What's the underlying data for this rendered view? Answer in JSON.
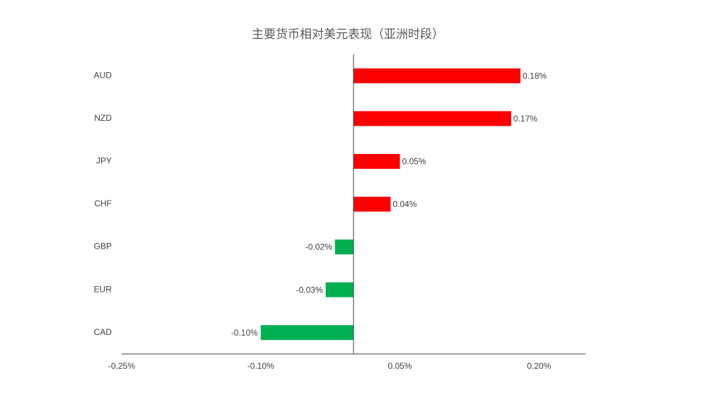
{
  "chart_data": {
    "type": "hbar",
    "title": "主要货币相对美元表现（亚洲时段）",
    "categories": [
      "AUD",
      "NZD",
      "JPY",
      "CHF",
      "GBP",
      "EUR",
      "CAD"
    ],
    "values": [
      0.18,
      0.17,
      0.05,
      0.04,
      -0.02,
      -0.03,
      -0.1
    ],
    "value_labels": [
      "0.18%",
      "0.17%",
      "0.05%",
      "0.04%",
      "-0.02%",
      "-0.03%",
      "-0.10%"
    ],
    "positive_color": "#ff0000",
    "negative_color": "#00b050",
    "xlim": [
      -0.25,
      0.25
    ],
    "xticks": [
      {
        "value": -0.25,
        "label": "-0.25%"
      },
      {
        "value": -0.1,
        "label": "-0.10%"
      },
      {
        "value": 0.05,
        "label": "0.05%"
      },
      {
        "value": 0.2,
        "label": "0.20%"
      }
    ],
    "grid": false
  }
}
